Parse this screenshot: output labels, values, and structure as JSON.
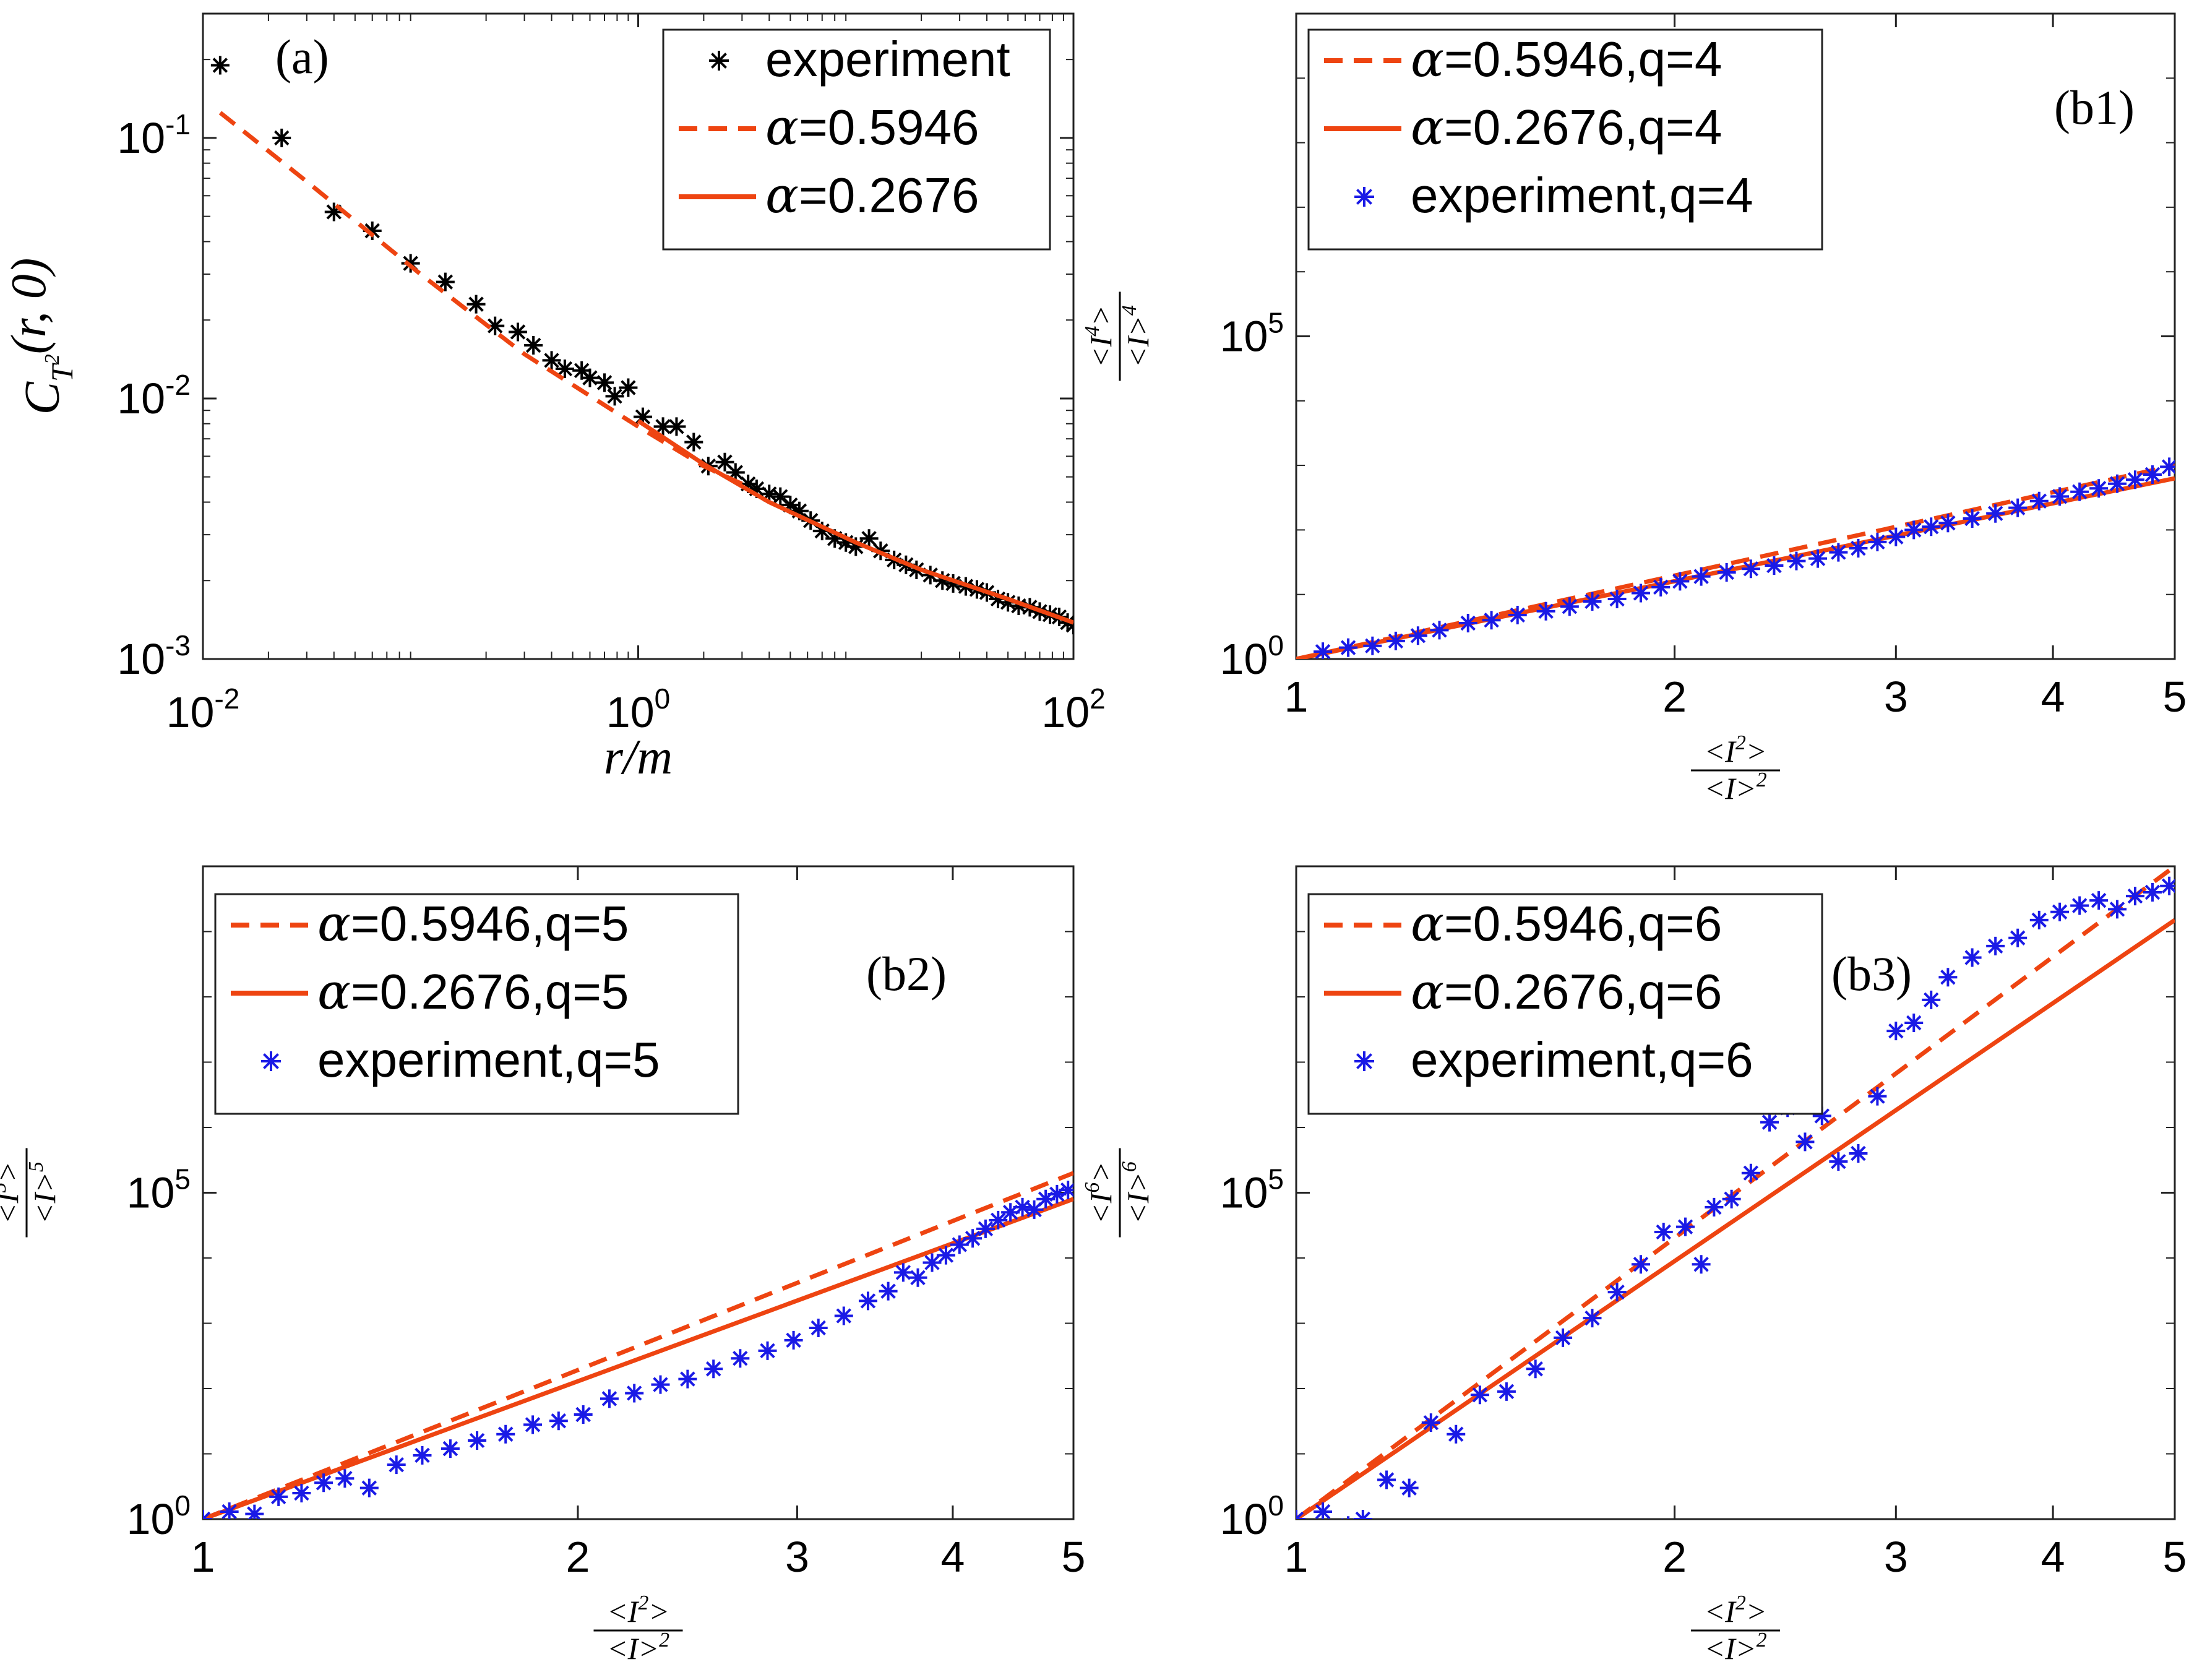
{
  "colors": {
    "model": "#ee4411",
    "experiment_a": "#000000",
    "experiment_b": "#1a1ae6",
    "axes": "#222222"
  },
  "chart_data": [
    {
      "id": "a",
      "type": "scatter",
      "panel_label": "(a)",
      "xscale": "log",
      "yscale": "log",
      "xlim": [
        0.01,
        100
      ],
      "ylim": [
        0.001,
        0.3
      ],
      "xticks": [
        0.01,
        1,
        100
      ],
      "xtick_labels": [
        {
          "base": "10",
          "exp": "-2"
        },
        {
          "base": "10",
          "exp": "0"
        },
        {
          "base": "10",
          "exp": "2"
        }
      ],
      "yticks": [
        0.001,
        0.01,
        0.1
      ],
      "ytick_labels": [
        {
          "base": "10",
          "exp": "-3"
        },
        {
          "base": "10",
          "exp": "-2"
        },
        {
          "base": "10",
          "exp": "-1"
        }
      ],
      "xlabel": "r/m",
      "ylabel": "C_{T^2}(r,0)",
      "legend_position": "top-right",
      "series": [
        {
          "name": "experiment",
          "kind": "markers",
          "marker": "*",
          "color": "#000000",
          "x": [
            0.012,
            0.023,
            0.04,
            0.06,
            0.09,
            0.13,
            0.18,
            0.22,
            0.28,
            0.33,
            0.4,
            0.46,
            0.55,
            0.6,
            0.7,
            0.78,
            0.9,
            1.05,
            1.3,
            1.5,
            1.8,
            2.1,
            2.5,
            2.8,
            3.2,
            3.5,
            4.0,
            4.5,
            5.0,
            5.5,
            6.2,
            7.0,
            8.0,
            9.0,
            10.0,
            11.5,
            13.0,
            15.0,
            17.0,
            19.0,
            22.0,
            25.0,
            28.0,
            32.0,
            36.0,
            40.0,
            45.0,
            50.0,
            56.0,
            63.0,
            70.0,
            78.0,
            86.0,
            94.0,
            100.0
          ],
          "y": [
            0.19,
            0.1,
            0.052,
            0.044,
            0.033,
            0.028,
            0.023,
            0.019,
            0.018,
            0.016,
            0.014,
            0.013,
            0.0128,
            0.012,
            0.0115,
            0.0102,
            0.011,
            0.0085,
            0.0078,
            0.0078,
            0.0068,
            0.0055,
            0.0057,
            0.0052,
            0.0047,
            0.0045,
            0.0043,
            0.0042,
            0.0039,
            0.0037,
            0.0034,
            0.0031,
            0.0029,
            0.0028,
            0.0027,
            0.0029,
            0.0026,
            0.0024,
            0.0023,
            0.0022,
            0.0021,
            0.002,
            0.00195,
            0.0019,
            0.00185,
            0.0018,
            0.0017,
            0.00165,
            0.0016,
            0.00158,
            0.00152,
            0.00148,
            0.00145,
            0.00138,
            0.00135
          ]
        },
        {
          "name": "α=0.5946",
          "kind": "dashed",
          "color": "#ee4411",
          "x": [
            0.012,
            0.03,
            0.1,
            0.3,
            1.0,
            2.0,
            3.0
          ],
          "y": [
            0.125,
            0.068,
            0.03,
            0.0148,
            0.0078,
            0.0055,
            0.0047
          ]
        },
        {
          "name": "α=0.2676",
          "kind": "solid",
          "color": "#ee4411",
          "x": [
            1.0,
            2.0,
            4.0,
            10.0,
            20.0,
            50.0,
            100.0
          ],
          "y": [
            0.0082,
            0.0056,
            0.004,
            0.0028,
            0.0022,
            0.0017,
            0.00138
          ]
        }
      ]
    },
    {
      "id": "b1",
      "type": "scatter",
      "panel_label": "(b1)",
      "xscale": "log",
      "yscale": "log",
      "xlim": [
        1,
        5
      ],
      "ylim": [
        1,
        10000000000.0
      ],
      "xticks": [
        1,
        2,
        3,
        4,
        5
      ],
      "xtick_labels": [
        "1",
        "2",
        "3",
        "4",
        "5"
      ],
      "yticks": [
        1,
        100000
      ],
      "ytick_labels": [
        {
          "base": "10",
          "exp": "0"
        },
        {
          "base": "10",
          "exp": "5"
        }
      ],
      "xlabel": "<I^2>/<I>^2",
      "ylabel": "<I^4>/<I>^4",
      "legend_position": "top-left",
      "series": [
        {
          "name": "α=0.5946,q=4",
          "kind": "dashed",
          "color": "#ee4411",
          "x": [
            1,
            5
          ],
          "y": [
            1,
            1000
          ]
        },
        {
          "name": "α=0.2676,q=4",
          "kind": "solid",
          "color": "#ee4411",
          "x": [
            1,
            5
          ],
          "y": [
            1,
            630
          ]
        },
        {
          "name": "experiment,q=4",
          "kind": "markers",
          "marker": "*",
          "color": "#1a1ae6",
          "x": [
            1.05,
            1.1,
            1.15,
            1.2,
            1.25,
            1.3,
            1.37,
            1.43,
            1.5,
            1.58,
            1.65,
            1.72,
            1.8,
            1.88,
            1.95,
            2.02,
            2.1,
            2.2,
            2.3,
            2.4,
            2.5,
            2.6,
            2.7,
            2.8,
            2.9,
            3.0,
            3.1,
            3.2,
            3.3,
            3.45,
            3.6,
            3.75,
            3.9,
            4.05,
            4.2,
            4.35,
            4.5,
            4.65,
            4.8,
            4.95
          ],
          "y": [
            1.3,
            1.5,
            1.6,
            1.9,
            2.3,
            2.8,
            3.6,
            4.0,
            4.8,
            5.5,
            6.5,
            7.8,
            8.5,
            10.5,
            13.0,
            16.0,
            19.0,
            22.0,
            25.0,
            28.0,
            33.0,
            36.0,
            45.0,
            52.0,
            65.0,
            78.0,
            100.0,
            112.0,
            128.0,
            150.0,
            180.0,
            220.0,
            280.0,
            330.0,
            390.0,
            440.0,
            520.0,
            600.0,
            720.0,
            950.0
          ]
        }
      ]
    },
    {
      "id": "b2",
      "type": "scatter",
      "panel_label": "(b2)",
      "xscale": "log",
      "yscale": "log",
      "xlim": [
        1,
        5
      ],
      "ylim": [
        1,
        10000000000.0
      ],
      "xticks": [
        1,
        2,
        3,
        4,
        5
      ],
      "xtick_labels": [
        "1",
        "2",
        "3",
        "4",
        "5"
      ],
      "yticks": [
        1,
        100000
      ],
      "ytick_labels": [
        {
          "base": "10",
          "exp": "0"
        },
        {
          "base": "10",
          "exp": "5"
        }
      ],
      "xlabel": "<I^2>/<I>^2",
      "ylabel": "<I^5>/<I>^5",
      "legend_position": "top-left",
      "series": [
        {
          "name": "α=0.5946,q=5",
          "kind": "dashed",
          "color": "#ee4411",
          "x": [
            1,
            5
          ],
          "y": [
            1,
            200000
          ]
        },
        {
          "name": "α=0.2676,q=5",
          "kind": "solid",
          "color": "#ee4411",
          "x": [
            1,
            5
          ],
          "y": [
            1,
            80000
          ]
        },
        {
          "name": "experiment,q=5",
          "kind": "markers",
          "marker": "*",
          "color": "#1a1ae6",
          "x": [
            1.0,
            1.05,
            1.1,
            1.15,
            1.2,
            1.25,
            1.3,
            1.36,
            1.43,
            1.5,
            1.58,
            1.66,
            1.75,
            1.84,
            1.93,
            2.02,
            2.12,
            2.22,
            2.33,
            2.45,
            2.57,
            2.7,
            2.84,
            2.98,
            3.12,
            3.27,
            3.42,
            3.55,
            3.65,
            3.75,
            3.85,
            3.95,
            4.05,
            4.15,
            4.25,
            4.35,
            4.45,
            4.55,
            4.65,
            4.75,
            4.85,
            4.95
          ],
          "y": [
            1.0,
            1.3,
            1.2,
            2.2,
            2.5,
            3.6,
            4.2,
            3.0,
            6.8,
            9.5,
            12.0,
            16.0,
            20.0,
            28.0,
            32.0,
            40.0,
            70.0,
            85.0,
            115.0,
            140.0,
            200.0,
            290.0,
            380.0,
            550.0,
            850.0,
            1300.0,
            2200.0,
            3100.0,
            6000.0,
            5000.0,
            8500.0,
            11000.0,
            16000.0,
            20000.0,
            28000.0,
            38000.0,
            50000.0,
            60000.0,
            55000.0,
            80000.0,
            95000.0,
            110000.0
          ]
        }
      ]
    },
    {
      "id": "b3",
      "type": "scatter",
      "panel_label": "(b3)",
      "xscale": "log",
      "yscale": "log",
      "xlim": [
        1,
        5
      ],
      "ylim": [
        1,
        10000000000.0
      ],
      "xticks": [
        1,
        2,
        3,
        4,
        5
      ],
      "xtick_labels": [
        "1",
        "2",
        "3",
        "4",
        "5"
      ],
      "yticks": [
        1,
        100000
      ],
      "ytick_labels": [
        {
          "base": "10",
          "exp": "0"
        },
        {
          "base": "10",
          "exp": "5"
        }
      ],
      "xlabel": "<I^2>/<I>^2",
      "ylabel": "<I^6>/<I>^6",
      "legend_position": "top-left",
      "series": [
        {
          "name": "α=0.5946,q=6",
          "kind": "dashed",
          "color": "#ee4411",
          "x": [
            1,
            5
          ],
          "y": [
            1,
            10000000000.0
          ]
        },
        {
          "name": "α=0.2676,q=6",
          "kind": "solid",
          "color": "#ee4411",
          "x": [
            1,
            5
          ],
          "y": [
            1,
            1500000000.0
          ]
        },
        {
          "name": "experiment,q=6",
          "kind": "markers",
          "marker": "*",
          "color": "#1a1ae6",
          "x": [
            1.0,
            1.05,
            1.1,
            1.13,
            1.18,
            1.23,
            1.28,
            1.34,
            1.4,
            1.47,
            1.55,
            1.63,
            1.72,
            1.8,
            1.88,
            1.96,
            2.04,
            2.1,
            2.15,
            2.22,
            2.3,
            2.38,
            2.46,
            2.54,
            2.62,
            2.7,
            2.8,
            2.9,
            3.0,
            3.1,
            3.2,
            3.3,
            3.45,
            3.6,
            3.75,
            3.9,
            4.05,
            4.2,
            4.35,
            4.5,
            4.65,
            4.8,
            4.95
          ],
          "y": [
            1.0,
            1.3,
            0.8,
            1.0,
            4.0,
            3.0,
            30.0,
            20.0,
            80.0,
            90.0,
            200.0,
            600.0,
            1200.0,
            3000.0,
            8000.0,
            25000.0,
            30000.0,
            8000.0,
            60000.0,
            80000.0,
            200000.0,
            1200000.0,
            2000000.0,
            600000.0,
            1500000.0,
            300000.0,
            400000.0,
            3000000.0,
            30000000.0,
            40000000.0,
            90000000.0,
            200000000.0,
            400000000.0,
            600000000.0,
            800000000.0,
            1500000000.0,
            2000000000.0,
            2500000000.0,
            3000000000.0,
            2200000000.0,
            3500000000.0,
            4000000000.0,
            5000000000.0
          ]
        }
      ]
    }
  ]
}
